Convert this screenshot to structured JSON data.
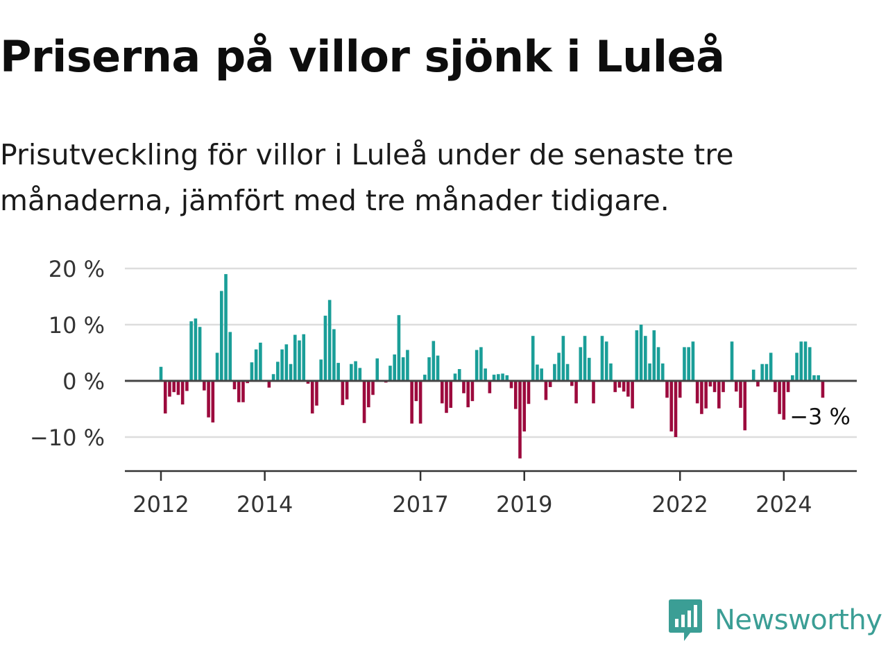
{
  "title": "Priserna på villor sjönk i Luleå",
  "subtitle": "Prisutveckling för villor i Luleå under de senaste tre månaderna, jämfört med tre månader tidigare.",
  "brand": {
    "name": "Newsworthy",
    "color": "#3b9e95",
    "icon": "bar-chart-speech-bubble-icon"
  },
  "colors": {
    "positive": "#1a9e98",
    "negative": "#9c0a3d",
    "grid": "#dddddd",
    "zero_line": "#444444",
    "axis": "#333333",
    "text": "#333333"
  },
  "chart_data": {
    "type": "bar",
    "unit": "%",
    "ylim": [
      -16,
      21
    ],
    "yticks": [
      -10,
      0,
      10,
      20
    ],
    "ytick_labels": [
      "−10 %",
      "0 %",
      "10 %",
      "20 %"
    ],
    "xticks": [
      {
        "label": "2012",
        "index": 0
      },
      {
        "label": "2014",
        "index": 24
      },
      {
        "label": "2017",
        "index": 60
      },
      {
        "label": "2019",
        "index": 84
      },
      {
        "label": "2022",
        "index": 120
      },
      {
        "label": "2024",
        "index": 144
      }
    ],
    "grid": true,
    "last_value_label": "−3 %",
    "values": [
      2.5,
      -5.8,
      -2.8,
      -2.0,
      -2.5,
      -4.2,
      -1.8,
      10.6,
      11.1,
      9.6,
      -1.7,
      -6.5,
      -7.4,
      5.0,
      16.0,
      19.0,
      8.7,
      -1.5,
      -3.8,
      -3.8,
      -0.4,
      3.3,
      5.6,
      6.8,
      0,
      -1.2,
      1.2,
      3.4,
      5.6,
      6.5,
      3.0,
      8.2,
      7.2,
      8.3,
      -0.5,
      -5.8,
      -4.4,
      3.8,
      11.6,
      14.4,
      9.2,
      3.2,
      -4.3,
      -3.3,
      3.0,
      3.5,
      2.3,
      -7.5,
      -4.7,
      -2.5,
      4.0,
      0,
      -0.3,
      2.7,
      4.7,
      11.7,
      4.2,
      5.5,
      -7.6,
      -3.6,
      -7.6,
      1.1,
      4.2,
      7.1,
      4.5,
      -4.0,
      -5.7,
      -4.8,
      1.3,
      2.1,
      -2.2,
      -4.7,
      -3.6,
      5.5,
      6.0,
      2.2,
      -2.2,
      1.1,
      1.2,
      1.3,
      1.0,
      -1.3,
      -5.0,
      -13.8,
      -9.0,
      -4.1,
      8.0,
      2.9,
      2.2,
      -3.4,
      -1.1,
      3.0,
      5.0,
      8.0,
      3.0,
      -0.9,
      -4.0,
      6.0,
      8.0,
      4.1,
      -4.0,
      0,
      8.0,
      7.0,
      3.1,
      -2.0,
      -1.2,
      -1.9,
      -2.8,
      -4.9,
      9.0,
      10.0,
      8.0,
      3.1,
      9.0,
      6.0,
      3.1,
      -3.0,
      -9.0,
      -10.0,
      -3.0,
      6.0,
      6.0,
      7.0,
      -4.0,
      -5.9,
      -4.9,
      -1.0,
      -2.0,
      -4.9,
      -2.0,
      0,
      7.0,
      -1.9,
      -4.8,
      -8.8,
      0,
      2.0,
      -1.0,
      3.0,
      3.0,
      5.0,
      -2.0,
      -5.9,
      -6.9,
      -2.0,
      1.0,
      5.0,
      7.0,
      7.0,
      6.0,
      1.0,
      1.0,
      -3.0
    ]
  }
}
